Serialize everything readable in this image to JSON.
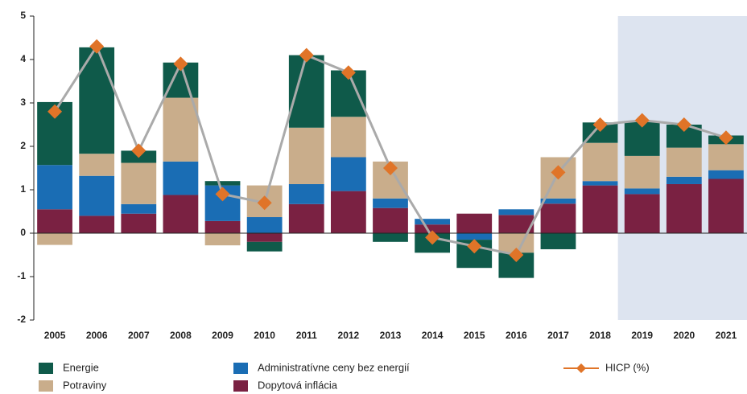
{
  "chart_data": {
    "type": "bar",
    "stacked": true,
    "categories": [
      "2005",
      "2006",
      "2007",
      "2008",
      "2009",
      "2010",
      "2011",
      "2012",
      "2013",
      "2014",
      "2015",
      "2016",
      "2017",
      "2018",
      "2019",
      "2020",
      "2021"
    ],
    "series": [
      {
        "name": "Dopytová inflácia",
        "color": "#7a2142",
        "values": [
          0.55,
          0.4,
          0.45,
          0.88,
          0.28,
          -0.2,
          0.67,
          0.97,
          0.58,
          0.2,
          0.45,
          0.42,
          0.68,
          1.1,
          0.9,
          1.13,
          1.25
        ]
      },
      {
        "name": "Administratívne ceny bez energií",
        "color": "#1a6db4",
        "values": [
          1.02,
          0.92,
          0.22,
          0.77,
          0.82,
          0.37,
          0.46,
          0.78,
          0.22,
          0.13,
          -0.15,
          0.13,
          0.12,
          0.1,
          0.13,
          0.17,
          0.2
        ]
      },
      {
        "name": "Potraviny",
        "color": "#c9ad8b",
        "values": [
          -0.27,
          0.51,
          0.95,
          1.47,
          -0.28,
          0.73,
          1.3,
          0.93,
          0.85,
          0,
          0,
          -0.45,
          0.95,
          0.88,
          0.75,
          0.67,
          0.6
        ]
      },
      {
        "name": "Energie",
        "color": "#0f5a4a",
        "values": [
          1.45,
          2.45,
          0.28,
          0.81,
          0.1,
          -0.22,
          1.67,
          1.07,
          -0.2,
          -0.45,
          -0.65,
          -0.58,
          -0.37,
          0.47,
          0.79,
          0.53,
          0.2
        ]
      },
      {
        "name": "HICP (%)",
        "type": "line",
        "color": "#e07428",
        "line_color": "#aaaaaa",
        "values": [
          2.8,
          4.3,
          1.9,
          3.9,
          0.9,
          0.7,
          4.1,
          3.7,
          1.5,
          -0.1,
          -0.3,
          -0.5,
          1.4,
          2.5,
          2.6,
          2.5,
          2.2
        ]
      }
    ],
    "ylim": [
      -2,
      5
    ],
    "yticks": [
      -2,
      -1,
      0,
      1,
      2,
      3,
      4,
      5
    ],
    "grid": false
  }
}
